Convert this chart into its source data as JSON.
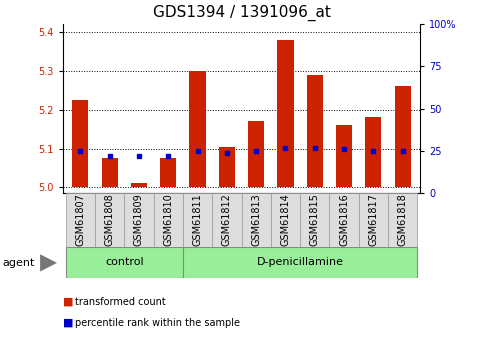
{
  "title": "GDS1394 / 1391096_at",
  "samples": [
    "GSM61807",
    "GSM61808",
    "GSM61809",
    "GSM61810",
    "GSM61811",
    "GSM61812",
    "GSM61813",
    "GSM61814",
    "GSM61815",
    "GSM61816",
    "GSM61817",
    "GSM61818"
  ],
  "transformed_count": [
    5.225,
    5.075,
    5.01,
    5.075,
    5.3,
    5.105,
    5.17,
    5.38,
    5.29,
    5.16,
    5.18,
    5.26
  ],
  "percentile_rank": [
    25,
    22,
    22,
    22,
    25,
    24,
    25,
    27,
    27,
    26,
    25,
    25
  ],
  "baseline": 5.0,
  "ylim_left": [
    4.985,
    5.42
  ],
  "ylim_right": [
    0,
    100
  ],
  "yticks_left": [
    5.0,
    5.1,
    5.2,
    5.3,
    5.4
  ],
  "yticks_right": [
    0,
    25,
    50,
    75,
    100
  ],
  "ytick_labels_right": [
    "0",
    "25",
    "50",
    "75",
    "100%"
  ],
  "groups": [
    {
      "label": "control",
      "start": 0,
      "end": 4
    },
    {
      "label": "D-penicillamine",
      "start": 4,
      "end": 12
    }
  ],
  "bar_color": "#cc2200",
  "dot_color": "#0000cc",
  "bar_width": 0.55,
  "background_color": "#ffffff",
  "grid_color": "#000000",
  "legend_items": [
    {
      "label": "transformed count",
      "color": "#cc2200"
    },
    {
      "label": "percentile rank within the sample",
      "color": "#0000cc"
    }
  ],
  "group_box_color": "#99ee99",
  "sample_box_color": "#dddddd",
  "title_fontsize": 11,
  "tick_fontsize": 7,
  "label_fontsize": 8
}
